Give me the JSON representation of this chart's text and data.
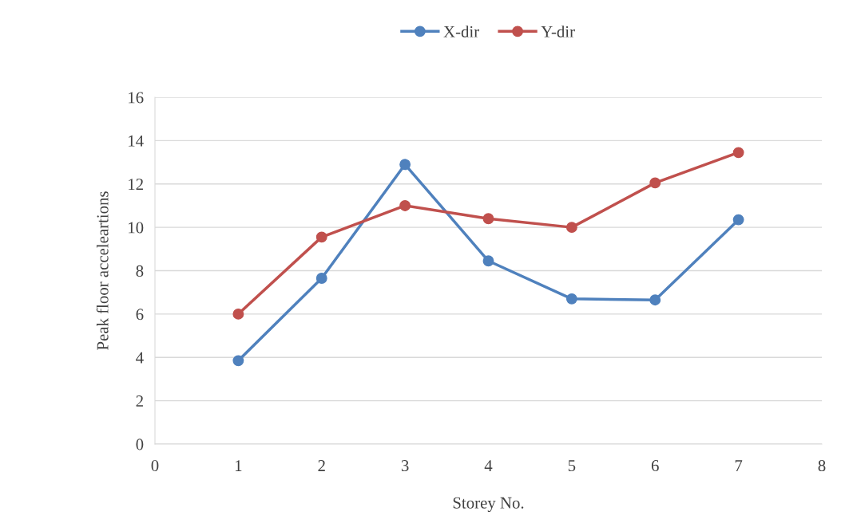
{
  "chart_data": {
    "type": "line",
    "xlabel": "Storey No.",
    "ylabel": "Peak floor acceleartions",
    "x": [
      1,
      2,
      3,
      4,
      5,
      6,
      7
    ],
    "series": [
      {
        "name": "X-dir",
        "color": "#4f81bd",
        "values": [
          3.85,
          7.65,
          12.9,
          8.45,
          6.7,
          6.65,
          10.35
        ]
      },
      {
        "name": "Y-dir",
        "color": "#c0504d",
        "values": [
          6.0,
          9.55,
          11.0,
          10.4,
          10.0,
          12.05,
          13.45
        ]
      }
    ],
    "xlim": [
      0,
      8
    ],
    "xticks": [
      0,
      1,
      2,
      3,
      4,
      5,
      6,
      7,
      8
    ],
    "ylim": [
      0,
      16
    ],
    "yticks": [
      0,
      2,
      4,
      6,
      8,
      10,
      12,
      14,
      16
    ],
    "grid": "y",
    "legend": "top",
    "marker": "circle",
    "line_style": "solid"
  }
}
